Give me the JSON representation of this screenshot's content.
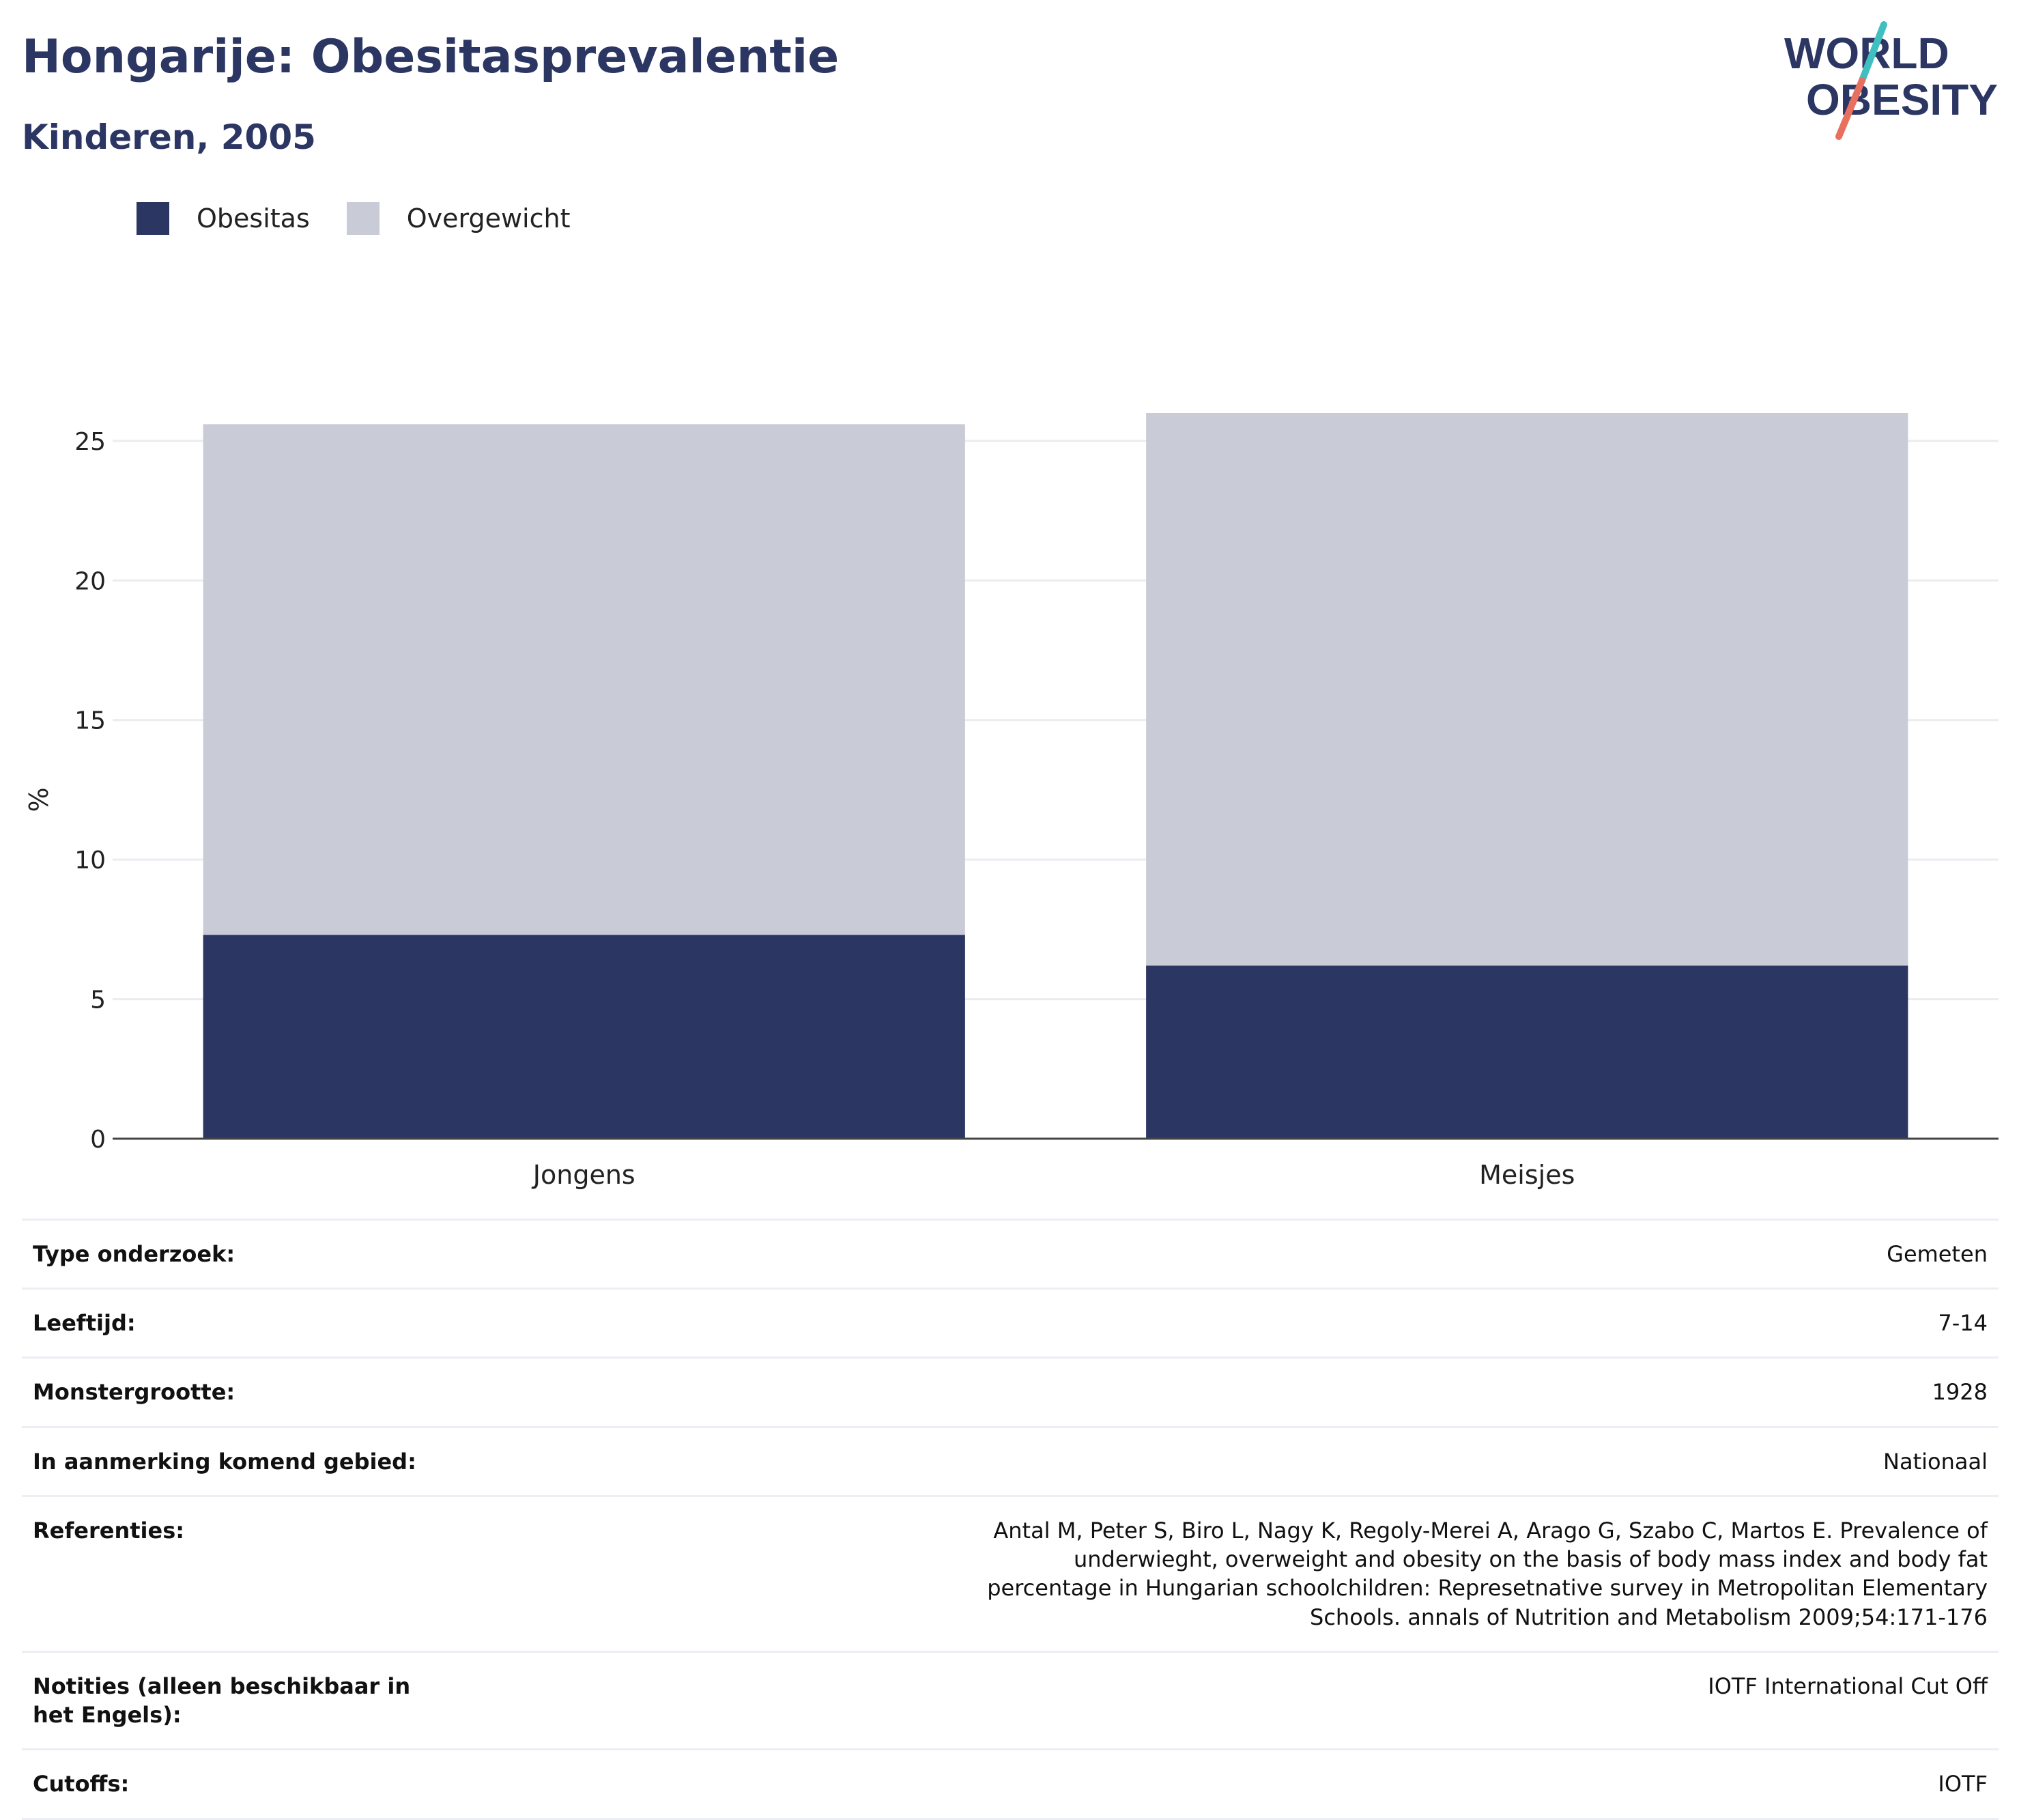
{
  "header": {
    "title": "Hongarije: Obesitasprevalentie",
    "subtitle": "Kinderen, 2005"
  },
  "logo": {
    "line1": "WORLD",
    "line2": "OBESITY",
    "colors": {
      "text": "#2b3663",
      "slash_top": "#3fbfbf",
      "slash_bottom": "#e8705f"
    }
  },
  "legend": [
    {
      "label": "Obesitas",
      "color": "#2b3663"
    },
    {
      "label": "Overgewicht",
      "color": "#c9cbd7"
    }
  ],
  "chart_data": {
    "type": "bar",
    "stacked": true,
    "categories": [
      "Jongens",
      "Meisjes"
    ],
    "series": [
      {
        "name": "Obesitas",
        "values": [
          7.3,
          6.2
        ],
        "color": "#2b3663"
      },
      {
        "name": "Overgewicht",
        "values": [
          18.3,
          19.8
        ],
        "color": "#c9cbd7"
      }
    ],
    "ylabel": "%",
    "ylim": [
      0,
      26
    ],
    "yticks": [
      0,
      5,
      10,
      15,
      20,
      25
    ],
    "grid": true,
    "legend_position": "top-left"
  },
  "info": [
    {
      "key": "Type onderzoek:",
      "value": "Gemeten"
    },
    {
      "key": "Leeftijd:",
      "value": "7-14"
    },
    {
      "key": "Monstergrootte:",
      "value": "1928"
    },
    {
      "key": "In aanmerking komend gebied:",
      "value": "Nationaal"
    },
    {
      "key": "Referenties:",
      "value": "Antal M, Peter S, Biro L, Nagy K, Regoly-Merei A, Arago G, Szabo C, Martos E. Prevalence of underwieght, overweight and obesity on the basis of body mass index and body fat percentage in Hungarian schoolchildren: Represetnative survey in Metropolitan Elementary Schools. annals of Nutrition and Metabolism 2009;54:171-176"
    },
    {
      "key": "Notities (alleen beschikbaar in het Engels):",
      "value": "IOTF International Cut Off"
    },
    {
      "key": "Cutoffs:",
      "value": "IOTF"
    }
  ]
}
